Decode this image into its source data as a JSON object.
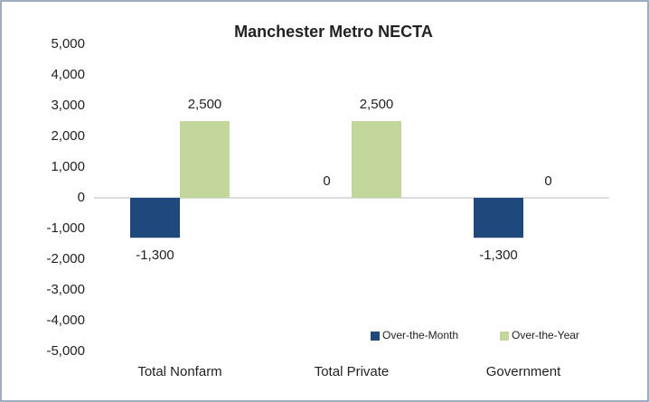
{
  "chart_data": {
    "type": "bar",
    "title": "Manchester Metro NECTA",
    "categories": [
      "Total Nonfarm",
      "Total Private",
      "Government"
    ],
    "series": [
      {
        "name": "Over-the-Month",
        "color": "#1f497d",
        "values": [
          -1300,
          0,
          -1300
        ],
        "value_labels": [
          "-1,300",
          "0",
          "-1,300"
        ]
      },
      {
        "name": "Over-the-Year",
        "color": "#c3d69b",
        "values": [
          2500,
          2500,
          0
        ],
        "value_labels": [
          "2,500",
          "2,500",
          "0"
        ]
      }
    ],
    "ylim": [
      -5000,
      5000
    ],
    "yticks": [
      {
        "value": -5000,
        "label": "-5,000"
      },
      {
        "value": -4000,
        "label": "-4,000"
      },
      {
        "value": -3000,
        "label": "-3,000"
      },
      {
        "value": -2000,
        "label": "-2,000"
      },
      {
        "value": -1000,
        "label": "-1,000"
      },
      0,
      {
        "value": 1000,
        "label": "1,000"
      },
      {
        "value": 2000,
        "label": "2,000"
      },
      {
        "value": 3000,
        "label": "3,000"
      },
      {
        "value": 4000,
        "label": "4,000"
      },
      {
        "value": 5000,
        "label": "5,000"
      }
    ],
    "grid": false,
    "legend": "lower right"
  }
}
